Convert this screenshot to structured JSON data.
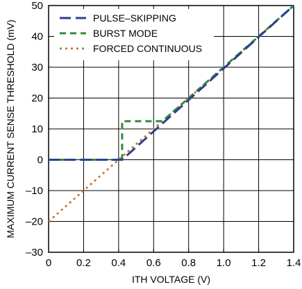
{
  "chart_data": {
    "type": "line",
    "xlabel": "ITH VOLTAGE (V)",
    "ylabel": "MAXIMUM CURRENT SENSE THRESHOLD (mV)",
    "xlim": [
      0,
      1.4
    ],
    "ylim": [
      -30,
      50
    ],
    "x_ticks": [
      0,
      0.2,
      0.4,
      0.6,
      0.8,
      1.0,
      1.2,
      1.4
    ],
    "x_tick_labels": [
      "0",
      "0.2",
      "0.4",
      "0.6",
      "0.8",
      "1.0",
      "1.2",
      "1.4"
    ],
    "y_ticks": [
      -30,
      -20,
      -10,
      0,
      10,
      20,
      30,
      40,
      50
    ],
    "y_tick_labels": [
      "–30",
      "–20",
      "–10",
      "0",
      "10",
      "20",
      "30",
      "40",
      "50"
    ],
    "grid": true,
    "legend_position": "top-left",
    "series": [
      {
        "name": "PULSE–SKIPPING",
        "color": "#2b3f93",
        "style": "long-dash",
        "x": [
          0,
          0.42,
          1.4
        ],
        "y": [
          0,
          0,
          50
        ]
      },
      {
        "name": "BURST MODE",
        "color": "#2f8a3c",
        "style": "dash",
        "x": [
          0,
          0.42,
          0.42,
          0.65,
          1.4
        ],
        "y": [
          0,
          0,
          12.5,
          12.5,
          50
        ]
      },
      {
        "name": "FORCED CONTINUOUS",
        "color": "#c8742c",
        "style": "dot",
        "x": [
          0,
          1.4
        ],
        "y": [
          -20,
          50
        ]
      }
    ]
  }
}
